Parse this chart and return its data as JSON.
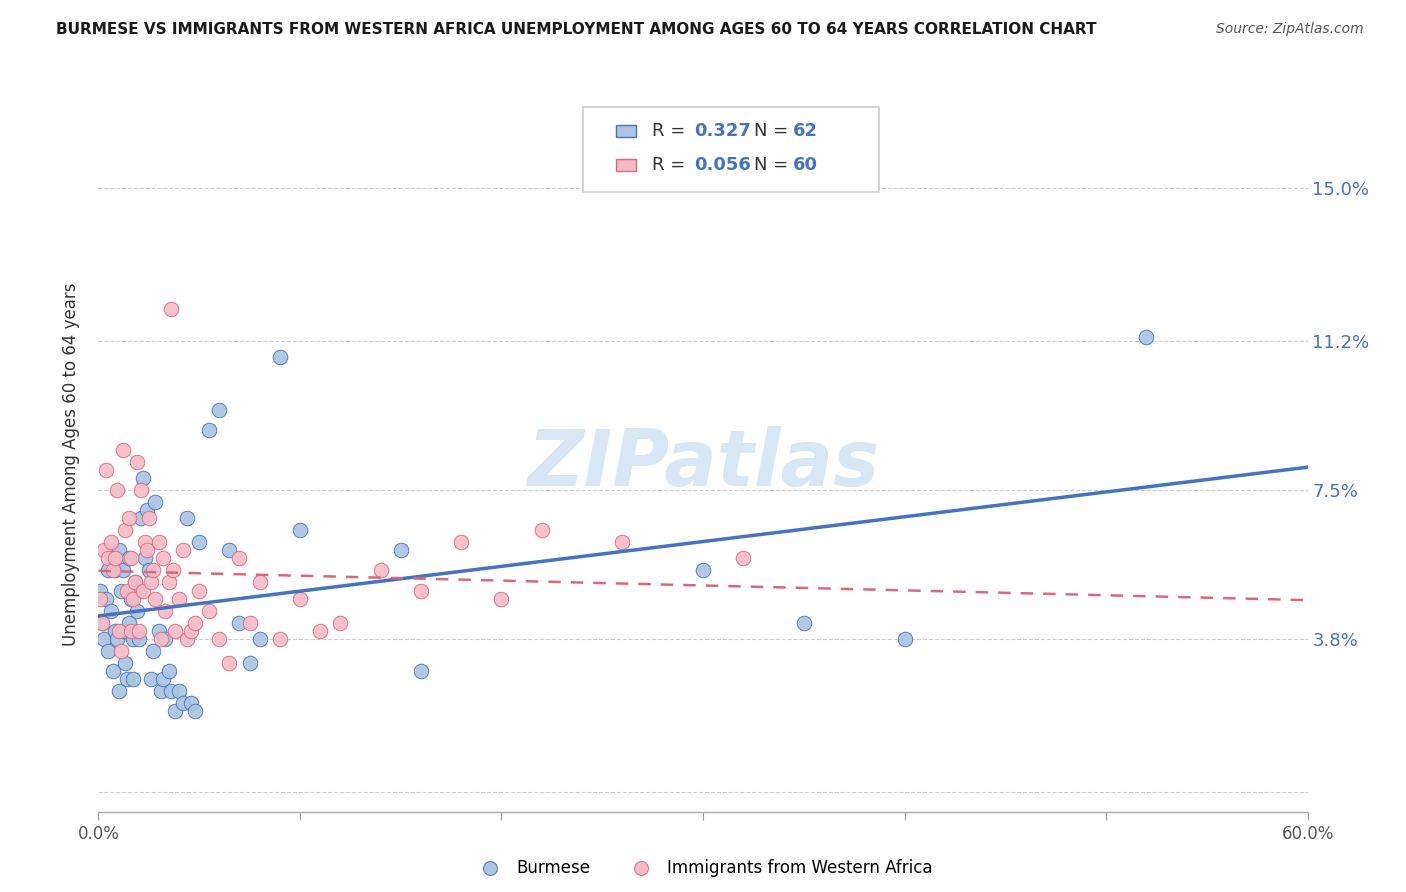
{
  "title": "BURMESE VS IMMIGRANTS FROM WESTERN AFRICA UNEMPLOYMENT AMONG AGES 60 TO 64 YEARS CORRELATION CHART",
  "source": "Source: ZipAtlas.com",
  "ylabel": "Unemployment Among Ages 60 to 64 years",
  "xmin": 0.0,
  "xmax": 0.6,
  "ymin": -0.005,
  "ymax": 0.168,
  "yticks": [
    0.0,
    0.038,
    0.075,
    0.112,
    0.15
  ],
  "ytick_labels": [
    "",
    "3.8%",
    "7.5%",
    "11.2%",
    "15.0%"
  ],
  "xticks": [
    0.0,
    0.1,
    0.2,
    0.3,
    0.4,
    0.5,
    0.6
  ],
  "xtick_labels": [
    "0.0%",
    "",
    "",
    "",
    "",
    "",
    "60.0%"
  ],
  "burmese_color": "#aac4e2",
  "western_africa_color": "#f5bbc8",
  "line_burmese_color": "#4472c4",
  "line_western_africa_color": "#d9697a",
  "watermark": "ZIPatlas",
  "burmese_x": [
    0.001,
    0.002,
    0.003,
    0.004,
    0.005,
    0.005,
    0.006,
    0.007,
    0.008,
    0.008,
    0.009,
    0.01,
    0.01,
    0.011,
    0.012,
    0.012,
    0.013,
    0.014,
    0.015,
    0.015,
    0.016,
    0.017,
    0.017,
    0.018,
    0.019,
    0.02,
    0.02,
    0.021,
    0.022,
    0.023,
    0.024,
    0.025,
    0.026,
    0.027,
    0.028,
    0.03,
    0.031,
    0.032,
    0.033,
    0.035,
    0.036,
    0.038,
    0.04,
    0.042,
    0.044,
    0.046,
    0.048,
    0.05,
    0.055,
    0.06,
    0.065,
    0.07,
    0.075,
    0.08,
    0.09,
    0.1,
    0.15,
    0.16,
    0.3,
    0.35,
    0.4,
    0.52
  ],
  "burmese_y": [
    0.05,
    0.042,
    0.038,
    0.048,
    0.055,
    0.035,
    0.045,
    0.03,
    0.055,
    0.04,
    0.038,
    0.025,
    0.06,
    0.05,
    0.055,
    0.04,
    0.032,
    0.028,
    0.042,
    0.058,
    0.048,
    0.038,
    0.028,
    0.052,
    0.045,
    0.05,
    0.038,
    0.068,
    0.078,
    0.058,
    0.07,
    0.055,
    0.028,
    0.035,
    0.072,
    0.04,
    0.025,
    0.028,
    0.038,
    0.03,
    0.025,
    0.02,
    0.025,
    0.022,
    0.068,
    0.022,
    0.02,
    0.062,
    0.09,
    0.095,
    0.06,
    0.042,
    0.032,
    0.038,
    0.108,
    0.065,
    0.06,
    0.03,
    0.055,
    0.042,
    0.038,
    0.113
  ],
  "western_africa_x": [
    0.001,
    0.002,
    0.003,
    0.004,
    0.005,
    0.006,
    0.007,
    0.008,
    0.009,
    0.01,
    0.011,
    0.012,
    0.013,
    0.014,
    0.015,
    0.016,
    0.016,
    0.017,
    0.018,
    0.019,
    0.02,
    0.021,
    0.022,
    0.023,
    0.024,
    0.025,
    0.026,
    0.027,
    0.028,
    0.03,
    0.031,
    0.032,
    0.033,
    0.035,
    0.036,
    0.037,
    0.038,
    0.04,
    0.042,
    0.044,
    0.046,
    0.048,
    0.05,
    0.055,
    0.06,
    0.065,
    0.07,
    0.075,
    0.08,
    0.09,
    0.1,
    0.11,
    0.12,
    0.14,
    0.16,
    0.18,
    0.2,
    0.22,
    0.26,
    0.32
  ],
  "western_africa_y": [
    0.048,
    0.042,
    0.06,
    0.08,
    0.058,
    0.062,
    0.055,
    0.058,
    0.075,
    0.04,
    0.035,
    0.085,
    0.065,
    0.05,
    0.068,
    0.058,
    0.04,
    0.048,
    0.052,
    0.082,
    0.04,
    0.075,
    0.05,
    0.062,
    0.06,
    0.068,
    0.052,
    0.055,
    0.048,
    0.062,
    0.038,
    0.058,
    0.045,
    0.052,
    0.12,
    0.055,
    0.04,
    0.048,
    0.06,
    0.038,
    0.04,
    0.042,
    0.05,
    0.045,
    0.038,
    0.032,
    0.058,
    0.042,
    0.052,
    0.038,
    0.048,
    0.04,
    0.042,
    0.055,
    0.05,
    0.062,
    0.048,
    0.065,
    0.062,
    0.058
  ]
}
